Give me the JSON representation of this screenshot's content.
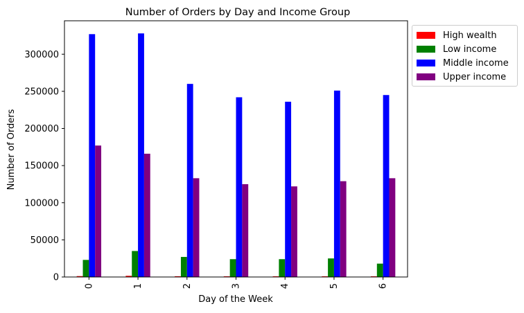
{
  "chart_data": {
    "type": "bar",
    "title": "Number of Orders by Day and Income Group",
    "xlabel": "Day of the Week",
    "ylabel": "Number of Orders",
    "categories": [
      "0",
      "1",
      "2",
      "3",
      "4",
      "5",
      "6"
    ],
    "series": [
      {
        "name": "High wealth",
        "color": "#ff0000",
        "values": [
          1200,
          1600,
          1000,
          900,
          900,
          900,
          900
        ]
      },
      {
        "name": "Low income",
        "color": "#008000",
        "values": [
          23000,
          35000,
          27000,
          24000,
          24000,
          25000,
          18000
        ]
      },
      {
        "name": "Middle income",
        "color": "#0000ff",
        "values": [
          327000,
          328000,
          260000,
          242000,
          236000,
          251000,
          245000
        ]
      },
      {
        "name": "Upper income",
        "color": "#800080",
        "values": [
          177000,
          166000,
          133000,
          125000,
          122000,
          129000,
          133000
        ]
      }
    ],
    "ylim": [
      0,
      345000
    ],
    "yticks": [
      0,
      50000,
      100000,
      150000,
      200000,
      250000,
      300000
    ],
    "legend": "outside upper right",
    "grid": false
  }
}
